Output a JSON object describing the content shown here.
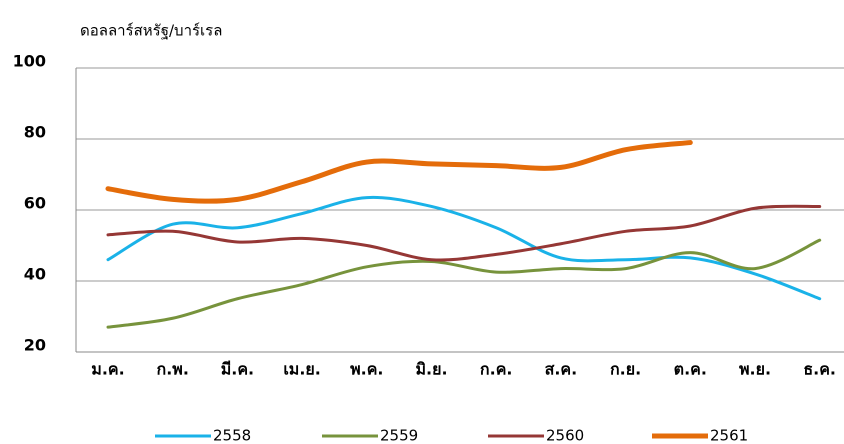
{
  "chart_data": {
    "type": "line",
    "y_axis_label": "ดอลลาร์สหรัฐ/บาร์เรล",
    "categories": [
      "ม.ค.",
      "ก.พ.",
      "มี.ค.",
      "เม.ย.",
      "พ.ค.",
      "มิ.ย.",
      "ก.ค.",
      "ส.ค.",
      "ก.ย.",
      "ต.ค.",
      "พ.ย.",
      "ธ.ค."
    ],
    "series": [
      {
        "name": "2558",
        "color": "#1ab2e8",
        "values": [
          46,
          56,
          55,
          59,
          63.5,
          61,
          55,
          46.5,
          46,
          46.5,
          42,
          35
        ]
      },
      {
        "name": "2559",
        "color": "#77933c",
        "values": [
          27,
          29.5,
          35,
          39,
          44,
          45.5,
          42.5,
          43.5,
          43.5,
          48,
          43.5,
          51.5
        ]
      },
      {
        "name": "2560",
        "color": "#953735",
        "values": [
          53,
          54,
          51,
          52,
          50,
          46,
          47.5,
          50.5,
          54,
          55.5,
          60.5,
          61
        ]
      },
      {
        "name": "2561",
        "color": "#e46c0a",
        "values": [
          66,
          63,
          63,
          68,
          73.5,
          73,
          72.5,
          72,
          77,
          79,
          null,
          null
        ]
      }
    ],
    "ylim": [
      20,
      100
    ],
    "yticks": [
      20,
      40,
      60,
      80,
      100
    ],
    "grid": true,
    "legend": "bottom"
  }
}
